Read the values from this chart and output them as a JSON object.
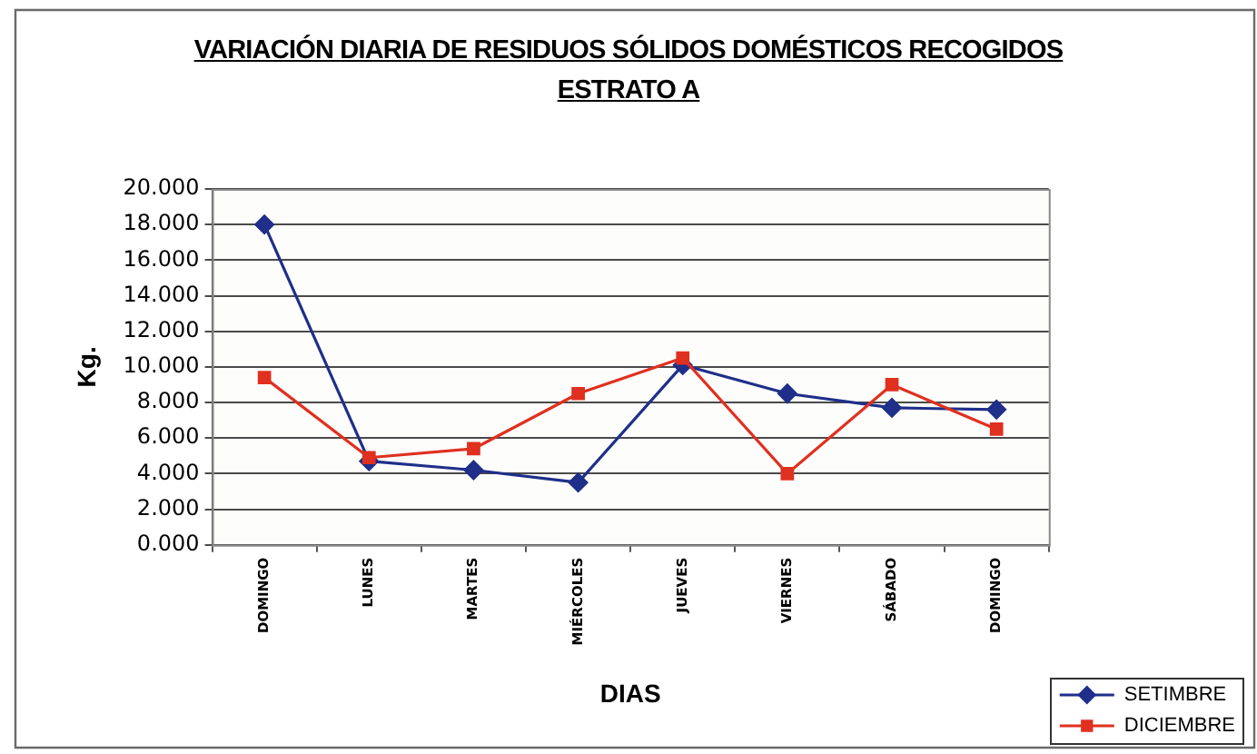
{
  "chart_data": {
    "type": "line",
    "title": "VARIACIÓN DIARIA DE RESIDUOS SÓLIDOS DOMÉSTICOS RECOGIDOS ESTRATO A",
    "xlabel": "DIAS",
    "ylabel": "Kg.",
    "categories": [
      "DOMINGO",
      "LUNES",
      "MARTES",
      "MIÉRCOLES",
      "JUEVES",
      "VIERNES",
      "SÁBADO",
      "DOMINGO"
    ],
    "series": [
      {
        "name": "SETIMBRE",
        "color": "#1f2f8a",
        "marker": "diamond",
        "values": [
          18.0,
          4.7,
          4.2,
          3.5,
          10.1,
          8.5,
          7.7,
          7.6
        ]
      },
      {
        "name": "DICIEMBRE",
        "color": "#e03020",
        "marker": "square",
        "values": [
          9.4,
          4.9,
          5.4,
          8.5,
          10.5,
          4.0,
          9.0,
          6.5
        ]
      }
    ],
    "ylim": [
      0,
      20
    ],
    "yticks": [
      {
        "value": 0,
        "label": "0.000"
      },
      {
        "value": 2,
        "label": "2.000"
      },
      {
        "value": 4,
        "label": "4.000"
      },
      {
        "value": 6,
        "label": "6.000"
      },
      {
        "value": 8,
        "label": "8.000"
      },
      {
        "value": 10,
        "label": "10.000"
      },
      {
        "value": 12,
        "label": "12.000"
      },
      {
        "value": 14,
        "label": "14.000"
      },
      {
        "value": 16,
        "label": "16.000"
      },
      {
        "value": 18,
        "label": "18.000"
      },
      {
        "value": 20,
        "label": "20.000"
      }
    ],
    "grid": "y",
    "legend": "bottom right",
    "line_style": "solid"
  }
}
